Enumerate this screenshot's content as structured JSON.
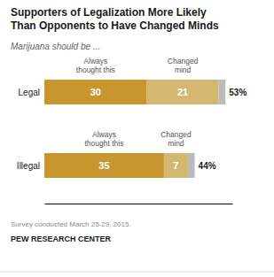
{
  "chart_data": {
    "type": "bar",
    "orientation": "horizontal",
    "stacked": true,
    "title": "Supporters of Legalization More Likely\nThan Opponents to Have Changed Minds",
    "subtitle": "Marijuana should be ...",
    "categories": [
      "Legal",
      "Illegal"
    ],
    "series": [
      {
        "name": "Always\nthought this",
        "color": "#C8962E",
        "values": [
          30,
          35
        ],
        "data_labels": true
      },
      {
        "name": "Changed\nmind",
        "color": "#D4B870",
        "values": [
          21,
          7
        ],
        "data_labels": true
      },
      {
        "color": "#BBBBBB",
        "values": [
          2,
          2
        ]
      }
    ],
    "totals": [
      53,
      44
    ],
    "total_labels": [
      "53%",
      "44%"
    ],
    "xlim": [
      0,
      55
    ],
    "tick_labels": false,
    "grid": false,
    "annotations": [
      "Survey conducted March 25-29, 2015.",
      "PEW RESEARCH CENTER"
    ]
  }
}
